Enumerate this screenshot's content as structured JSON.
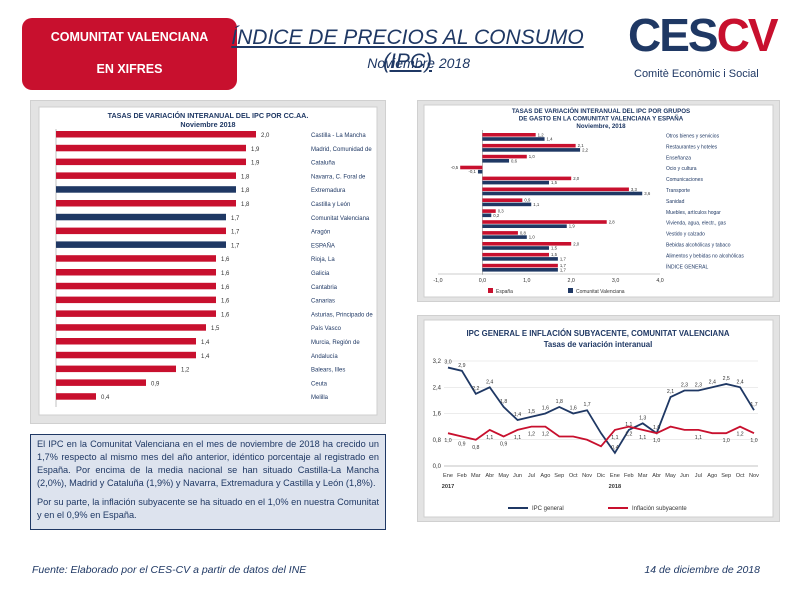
{
  "header": {
    "badge_line1": "COMUNITAT VALENCIANA",
    "badge_line2": "EN XIFRES",
    "title": "ÍNDICE DE PRECIOS AL CONSUMO (IPC)",
    "subtitle": "Noviembre 2018",
    "logo_text_a": "CES",
    "logo_text_b": "CV",
    "logo_sub": "Comitè Econòmic i Social"
  },
  "colors": {
    "red": "#c8102e",
    "navy": "#1f3864",
    "panel": "#e3e3e3",
    "text": "#1f3864"
  },
  "textbox": {
    "p1": "El IPC en la Comunitat Valenciana en el mes de noviembre de 2018 ha crecido un 1,7% respecto al mismo mes del año anterior, idéntico porcentaje al registrado en España. Por encima de la media nacional se han situado Castilla-La Mancha (2,0%), Madrid y Cataluña (1,9%) y Navarra, Extremadura y Castilla y León (1,8%).",
    "p2": "Por su parte, la inflación subyacente se ha situado en el 1,0% en nuestra Comunitat y en el 0,9% en España."
  },
  "footer": {
    "source": "Fuente: Elaborado por el CES-CV a partir de datos del INE",
    "date": "14 de diciembre de 2018"
  },
  "chart_data": [
    {
      "type": "bar",
      "orientation": "horizontal",
      "title": "TASAS DE VARIACIÓN INTERANUAL DEL IPC POR CC.AA.",
      "subtitle": "Noviembre 2018",
      "categories": [
        "Castilla - La Mancha",
        "Madrid, Comunidad de",
        "Cataluña",
        "Navarra, C. Foral de",
        "Extremadura",
        "Castilla y León",
        "Comunitat Valenciana",
        "Aragón",
        "ESPAÑA",
        "Rioja, La",
        "Galicia",
        "Cantabria",
        "Canarias",
        "Asturias, Principado de",
        "País Vasco",
        "Murcia, Región de",
        "Andalucía",
        "Balears, Illes",
        "Ceuta",
        "Melilla"
      ],
      "category_lines": [
        [
          "Castilla - La Mancha"
        ],
        [
          "Madrid, Comunidad de"
        ],
        [
          "Cataluña"
        ],
        [
          "Navarra, C. Foral de"
        ],
        [
          "Extremadura"
        ],
        [
          "Castilla y León"
        ],
        [
          "Comunitat Valenciana"
        ],
        [
          "Aragón"
        ],
        [
          "ESPAÑA"
        ],
        [
          "Rioja, La"
        ],
        [
          "Galicia"
        ],
        [
          "Cantabria"
        ],
        [
          "Canarias"
        ],
        [
          "Asturias, Principado de",
          "País Vasco"
        ],
        [],
        [
          "Murcia, Región de",
          "Andalucía"
        ],
        [],
        [
          "Balears, Illes"
        ],
        [
          "Ceuta"
        ],
        [
          "Melilla"
        ]
      ],
      "values": [
        2.0,
        1.9,
        1.9,
        1.8,
        1.8,
        1.8,
        1.7,
        1.7,
        1.7,
        1.6,
        1.6,
        1.6,
        1.6,
        1.6,
        1.5,
        1.4,
        1.4,
        1.2,
        0.9,
        0.4
      ],
      "labels": [
        "2,0",
        "1,9",
        "1,9",
        "1,8",
        "1,8",
        "1,8",
        "1,7",
        "1,7",
        "1,7",
        "1,6",
        "1,6",
        "1,6",
        "1,6",
        "1,6",
        "1,5",
        "1,4",
        "1,4",
        "1,2",
        "0,9",
        "0,4"
      ],
      "highlight": [
        "Extremadura",
        "Comunitat Valenciana",
        "ESPAÑA"
      ],
      "colors": {
        "default": "#c8102e",
        "highlight": "#1f3864"
      }
    },
    {
      "type": "bar",
      "orientation": "horizontal",
      "title": "TASAS DE VARIACIÓN INTERANUAL DEL IPC POR GRUPOS DE GASTO EN LA COMUNITAT VALENCIANA Y ESPAÑA",
      "title_lines": [
        "TASAS DE VARIACIÓN INTERANUAL DEL IPC POR GRUPOS",
        "DE GASTO EN LA COMUNITAT VALENCIANA Y ESPAÑA",
        "Noviembre, 2018"
      ],
      "categories": [
        "Otros bienes y servicios",
        "Restaurantes y hoteles",
        "Enseñanza",
        "Ocio y cultura",
        "Comunicaciones",
        "Transporte",
        "Sanidad",
        "Muebles, artículos hogar",
        "Vivienda, agua, electr., gas",
        "Vestido y calzado",
        "Bebidas alcohólicas y tabaco",
        "Alimentos y bebidas no alcohólicas",
        "ÍNDICE GENERAL"
      ],
      "series": [
        {
          "name": "España",
          "values": [
            1.2,
            2.1,
            1.0,
            -0.5,
            2.0,
            3.3,
            0.9,
            0.3,
            2.8,
            0.8,
            2.0,
            1.5,
            1.7
          ],
          "labels": [
            "1,2",
            "2,1",
            "1,0",
            "-0,5",
            "2,0",
            "3,3",
            "0,9",
            "0,3",
            "2,8",
            "0,8",
            "2,0",
            "1,5",
            "1,7"
          ]
        },
        {
          "name": "Comunitat Valenciana",
          "values": [
            1.4,
            2.2,
            0.6,
            -0.1,
            1.5,
            3.6,
            1.1,
            0.2,
            1.9,
            1.0,
            1.5,
            1.7,
            1.7
          ],
          "labels": [
            "1,4",
            "2,2",
            "0,6",
            "-0,1",
            "1,5",
            "3,6",
            "1,1",
            "0,2",
            "1,9",
            "1,0",
            "1,5",
            "1,7",
            "1,7"
          ]
        }
      ],
      "x_ticks": [
        "-1,0",
        "0,0",
        "1,0",
        "2,0",
        "3,0",
        "4,0"
      ],
      "xlim": [
        -1.0,
        4.0
      ],
      "legend": "bottom",
      "colors": {
        "España": "#c8102e",
        "Comunitat Valenciana": "#1f3864"
      }
    },
    {
      "type": "line",
      "title": "IPC GENERAL E INFLACIÓN SUBYACENTE, COMUNITAT VALENCIANA",
      "subtitle": "Tasas de variación interanual",
      "x": [
        "Ene",
        "Feb",
        "Mar",
        "Abr",
        "May",
        "Jun",
        "Jul",
        "Ago",
        "Sep",
        "Oct",
        "Nov",
        "Dic",
        "Ene",
        "Feb",
        "Mar",
        "Abr",
        "May",
        "Jun",
        "Jul",
        "Ago",
        "Sep",
        "Oct",
        "Nov"
      ],
      "year_labels": [
        "2017",
        "2018"
      ],
      "series": [
        {
          "name": "IPC general",
          "values": [
            3.0,
            2.9,
            2.2,
            2.4,
            1.8,
            1.4,
            1.5,
            1.6,
            1.8,
            1.6,
            1.7,
            1.0,
            0.4,
            1.1,
            1.3,
            1.0,
            2.1,
            2.3,
            2.3,
            2.4,
            2.5,
            2.4,
            1.7
          ],
          "labels": [
            "3,0",
            "2,9",
            "2,2",
            "2,4",
            "1,8",
            "1,4",
            "1,5",
            "1,6",
            "1,8",
            "1,6",
            "1,7",
            "",
            "0,4",
            "1,1",
            "1,3",
            "1,0",
            "2,1",
            "2,3",
            "2,3",
            "2,4",
            "2,5",
            "2,4",
            "1,7"
          ]
        },
        {
          "name": "Inflación subyacente",
          "values": [
            1.0,
            0.9,
            0.8,
            1.1,
            0.9,
            1.1,
            1.2,
            1.2,
            0.9,
            0.9,
            0.8,
            0.6,
            1.1,
            1.2,
            1.1,
            1.0,
            1.2,
            1.1,
            1.1,
            1.0,
            1.0,
            1.2,
            1.0
          ],
          "labels": [
            "1,0",
            "0,9",
            "0,8",
            "1,1",
            "0,9",
            "1,1",
            "1,2",
            "1,2",
            "",
            "",
            "",
            "",
            "1,1",
            "1,2",
            "1,1",
            "1,0",
            "",
            "",
            "1,1",
            "",
            "1,0",
            "1,2",
            "1,0"
          ]
        }
      ],
      "y_ticks": [
        "0,0",
        "0,8",
        "1,6",
        "2,4",
        "3,2"
      ],
      "ylim": [
        0.0,
        3.2
      ],
      "legend": "bottom",
      "colors": {
        "IPC general": "#1f3864",
        "Inflación subyacente": "#c8102e"
      }
    }
  ]
}
